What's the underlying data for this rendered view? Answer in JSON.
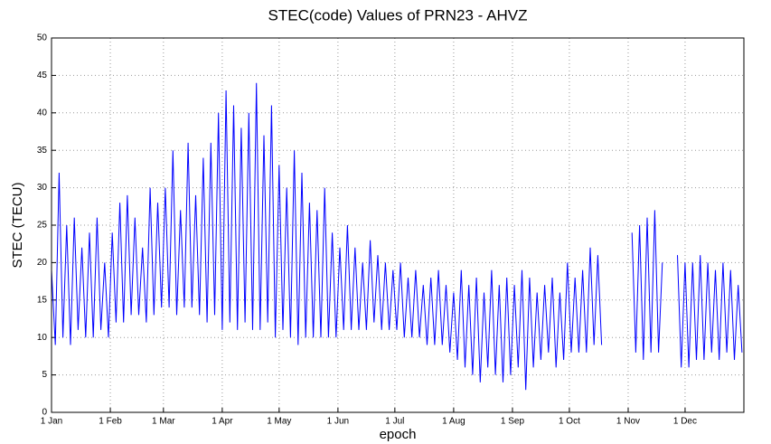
{
  "chart_data": {
    "type": "line",
    "title": "STEC(code) Values of PRN23 - AHVZ",
    "x_label": "epoch",
    "y_label": "STEC (TECU)",
    "xlim": [
      0,
      365
    ],
    "ylim": [
      0,
      50
    ],
    "yticks": [
      0,
      5,
      10,
      15,
      20,
      25,
      30,
      35,
      40,
      45,
      50
    ],
    "xticks": [
      {
        "value": 0,
        "label": "1 Jan"
      },
      {
        "value": 31,
        "label": "1 Feb"
      },
      {
        "value": 59,
        "label": "1 Mar"
      },
      {
        "value": 90,
        "label": "1 Apr"
      },
      {
        "value": 120,
        "label": "1 May"
      },
      {
        "value": 151,
        "label": "1 Jun"
      },
      {
        "value": 181,
        "label": "1 Jul"
      },
      {
        "value": 212,
        "label": "1 Aug"
      },
      {
        "value": 243,
        "label": "1 Sep"
      },
      {
        "value": 273,
        "label": "1 Oct"
      },
      {
        "value": 304,
        "label": "1 Nov"
      },
      {
        "value": 334,
        "label": "1 Dec"
      }
    ],
    "grid": true,
    "x": [
      0,
      2,
      4,
      6,
      8,
      10,
      12,
      14,
      16,
      18,
      20,
      22,
      24,
      26,
      28,
      30,
      32,
      34,
      36,
      38,
      40,
      42,
      44,
      46,
      48,
      50,
      52,
      54,
      56,
      58,
      60,
      62,
      64,
      66,
      68,
      70,
      72,
      74,
      76,
      78,
      80,
      82,
      84,
      86,
      88,
      90,
      92,
      94,
      96,
      98,
      100,
      102,
      104,
      106,
      108,
      110,
      112,
      114,
      116,
      118,
      120,
      122,
      124,
      126,
      128,
      130,
      132,
      134,
      136,
      138,
      140,
      142,
      144,
      146,
      148,
      150,
      152,
      154,
      156,
      158,
      160,
      162,
      164,
      166,
      168,
      170,
      172,
      174,
      176,
      178,
      180,
      182,
      184,
      186,
      188,
      190,
      192,
      194,
      196,
      198,
      200,
      202,
      204,
      206,
      208,
      210,
      212,
      214,
      216,
      218,
      220,
      222,
      224,
      226,
      228,
      230,
      232,
      234,
      236,
      238,
      240,
      242,
      244,
      246,
      248,
      250,
      252,
      254,
      256,
      258,
      260,
      262,
      264,
      266,
      268,
      270,
      272,
      274,
      276,
      278,
      280,
      282,
      284,
      286,
      288,
      290,
      292,
      294,
      296,
      298,
      300,
      302,
      304,
      306,
      308,
      310,
      312,
      314,
      316,
      318,
      320,
      322,
      324,
      326,
      328,
      330,
      332,
      334,
      336,
      338,
      340,
      342,
      344,
      346,
      348,
      350,
      352,
      354,
      356,
      358,
      360,
      362,
      364
    ],
    "series": [
      {
        "color": "#0000ff",
        "values": [
          19,
          9,
          32,
          10,
          25,
          9,
          26,
          11,
          22,
          10,
          24,
          10,
          26,
          11,
          20,
          10,
          24,
          12,
          28,
          12,
          29,
          13,
          26,
          13,
          22,
          12,
          30,
          13,
          28,
          14,
          30,
          14,
          35,
          13,
          27,
          14,
          36,
          14,
          29,
          13,
          34,
          12,
          36,
          13,
          40,
          11,
          43,
          12,
          41,
          11,
          38,
          12,
          40,
          11,
          44,
          11,
          37,
          12,
          41,
          10,
          33,
          11,
          30,
          10,
          35,
          9,
          32,
          10,
          28,
          10,
          27,
          10,
          30,
          10,
          24,
          10,
          22,
          11,
          25,
          11,
          22,
          11,
          20,
          11,
          23,
          12,
          21,
          11,
          20,
          11,
          19,
          11,
          20,
          10,
          18,
          10,
          19,
          10,
          17,
          9,
          18,
          9,
          19,
          9,
          17,
          8,
          16,
          7,
          19,
          6,
          17,
          5,
          18,
          4,
          16,
          6,
          19,
          5,
          17,
          4,
          18,
          5,
          17,
          6,
          19,
          3,
          18,
          6,
          16,
          7,
          17,
          8,
          18,
          6,
          16,
          7,
          20,
          8,
          18,
          8,
          19,
          8,
          22,
          9,
          21,
          9,
          null,
          null,
          null,
          null,
          null,
          null,
          null,
          24,
          8,
          25,
          7,
          26,
          8,
          27,
          8,
          20,
          null,
          null,
          null,
          21,
          6,
          20,
          6,
          20,
          7,
          21,
          7,
          20,
          8,
          19,
          7,
          20,
          8,
          19,
          7,
          17,
          8
        ]
      }
    ]
  }
}
